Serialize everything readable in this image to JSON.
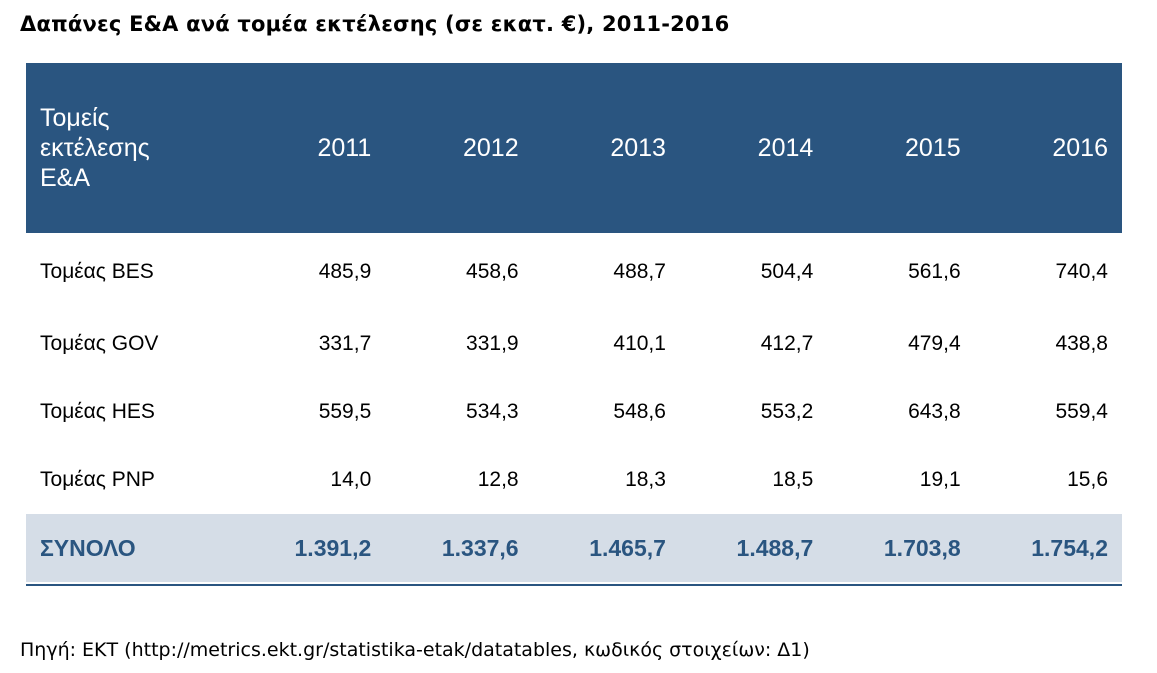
{
  "title": "Δαπάνες Ε&Α ανά τομέα εκτέλεσης (σε εκατ. €), 2011-2016",
  "table": {
    "header_label_lines": [
      "Τομείς",
      "εκτέλεσης",
      "Ε&Α"
    ],
    "years": [
      "2011",
      "2012",
      "2013",
      "2014",
      "2015",
      "2016"
    ],
    "rows": [
      {
        "label": "Τομέας BES",
        "values": [
          "485,9",
          "458,6",
          "488,7",
          "504,4",
          "561,6",
          "740,4"
        ]
      },
      {
        "label": "Τομέας GOV",
        "values": [
          "331,7",
          "331,9",
          "410,1",
          "412,7",
          "479,4",
          "438,8"
        ]
      },
      {
        "label": "Τομέας HES",
        "values": [
          "559,5",
          "534,3",
          "548,6",
          "553,2",
          "643,8",
          "559,4"
        ]
      },
      {
        "label": "Τομέας PNP",
        "values": [
          "14,0",
          "12,8",
          "18,3",
          "18,5",
          "19,1",
          "15,6"
        ]
      }
    ],
    "total": {
      "label": "ΣΥΝΟΛΟ",
      "values": [
        "1.391,2",
        "1.337,6",
        "1.465,7",
        "1.488,7",
        "1.703,8",
        "1.754,2"
      ]
    }
  },
  "source": "Πηγή: ΕΚΤ (http://metrics.ekt.gr/statistika-etak/datatables, κωδικός στοιχείων: Δ1)",
  "colors": {
    "header_bg": "#2a5580",
    "total_bg": "#d5dde7",
    "total_text": "#2a5580"
  }
}
